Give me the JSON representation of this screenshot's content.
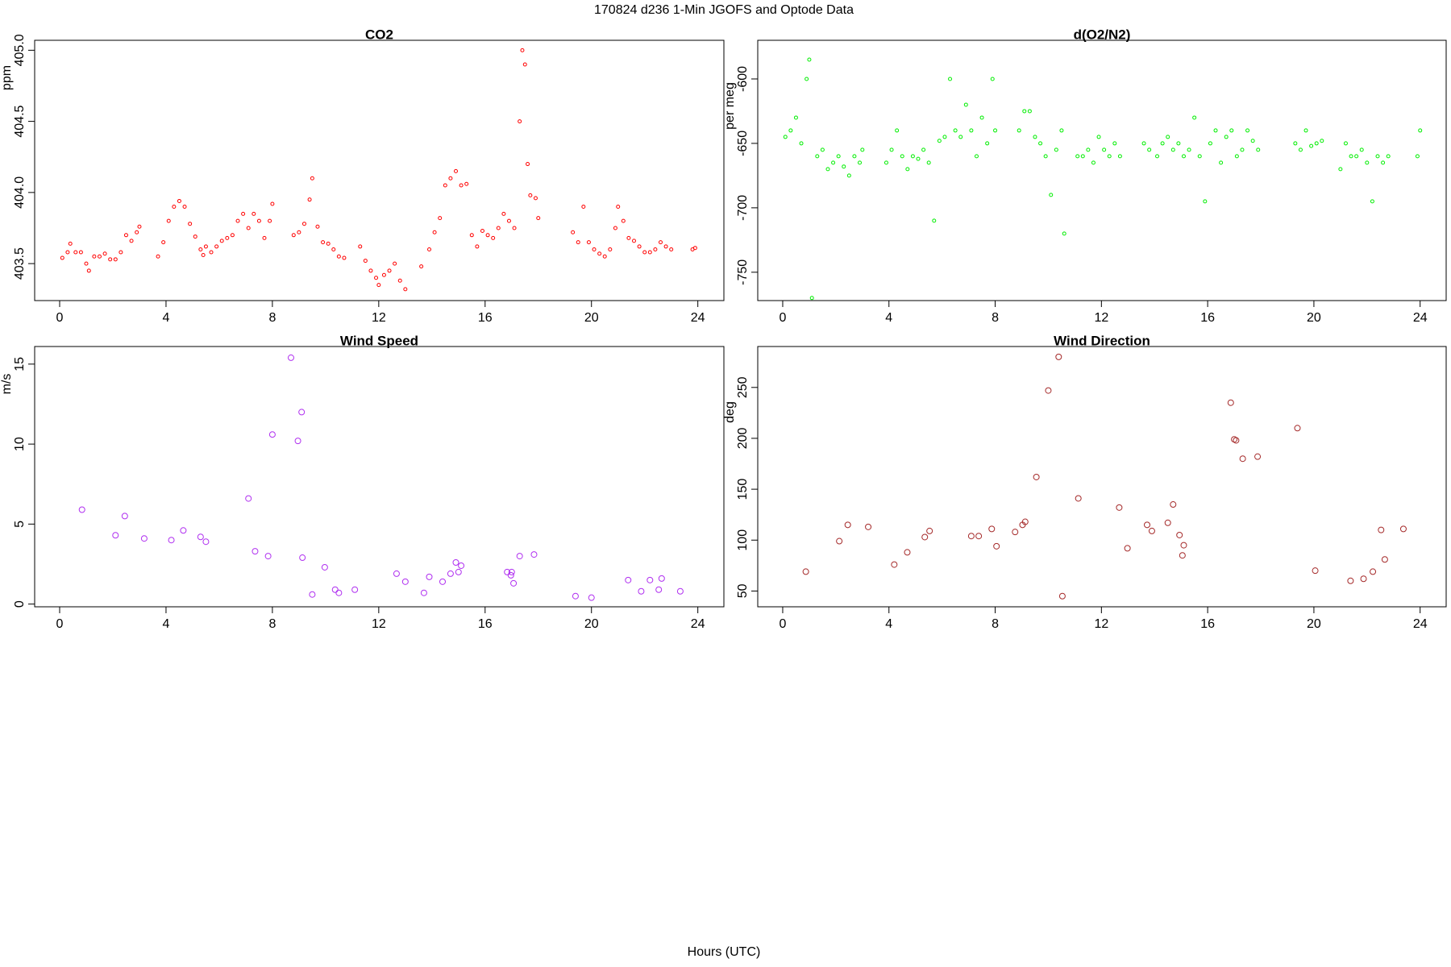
{
  "title": "170824   d236   1-Min  JGOFS and Optode Data",
  "xlabel": "Hours (UTC)",
  "chart_data": [
    {
      "type": "scatter",
      "title": "CO2",
      "ylabel": "ppm",
      "color": "#ff0000",
      "x": [
        0.1,
        0.3,
        0.4,
        0.6,
        0.8,
        1.0,
        1.1,
        1.3,
        1.5,
        1.7,
        1.9,
        2.1,
        2.3,
        2.5,
        2.7,
        2.9,
        3.0,
        3.7,
        3.9,
        4.1,
        4.3,
        4.5,
        4.7,
        4.9,
        5.1,
        5.3,
        5.4,
        5.5,
        5.7,
        5.9,
        6.1,
        6.3,
        6.5,
        6.7,
        6.9,
        7.1,
        7.3,
        7.5,
        7.7,
        7.9,
        8.0,
        8.8,
        9.0,
        9.2,
        9.4,
        9.5,
        9.7,
        9.9,
        10.1,
        10.3,
        10.5,
        10.7,
        11.3,
        11.5,
        11.7,
        11.9,
        12.0,
        12.2,
        12.4,
        12.6,
        12.8,
        13.0,
        13.6,
        13.9,
        14.1,
        14.3,
        14.5,
        14.7,
        14.9,
        15.1,
        15.3,
        15.5,
        15.7,
        15.9,
        16.1,
        16.3,
        16.5,
        16.7,
        16.9,
        17.1,
        17.3,
        17.4,
        17.5,
        17.6,
        17.7,
        17.9,
        18.0,
        19.3,
        19.5,
        19.7,
        19.9,
        20.1,
        20.3,
        20.5,
        20.7,
        20.9,
        21.0,
        21.2,
        21.4,
        21.6,
        21.8,
        22.0,
        22.2,
        22.4,
        22.6,
        22.8,
        23.0,
        23.8,
        23.9
      ],
      "values": [
        403.54,
        403.58,
        403.64,
        403.58,
        403.58,
        403.5,
        403.45,
        403.55,
        403.55,
        403.57,
        403.53,
        403.53,
        403.58,
        403.7,
        403.66,
        403.72,
        403.76,
        403.55,
        403.65,
        403.8,
        403.9,
        403.94,
        403.9,
        403.78,
        403.69,
        403.6,
        403.56,
        403.62,
        403.58,
        403.62,
        403.66,
        403.68,
        403.7,
        403.8,
        403.85,
        403.75,
        403.85,
        403.8,
        403.68,
        403.8,
        403.92,
        403.7,
        403.72,
        403.78,
        403.95,
        404.1,
        403.76,
        403.65,
        403.64,
        403.6,
        403.55,
        403.54,
        403.62,
        403.52,
        403.45,
        403.4,
        403.35,
        403.42,
        403.45,
        403.5,
        403.38,
        403.32,
        403.48,
        403.6,
        403.72,
        403.82,
        404.05,
        404.1,
        404.15,
        404.05,
        404.06,
        403.7,
        403.62,
        403.73,
        403.7,
        403.68,
        403.75,
        403.85,
        403.8,
        403.75,
        404.5,
        405.0,
        404.9,
        404.2,
        403.98,
        403.96,
        403.82,
        403.72,
        403.65,
        403.9,
        403.65,
        403.6,
        403.57,
        403.55,
        403.6,
        403.75,
        403.9,
        403.8,
        403.68,
        403.66,
        403.62,
        403.58,
        403.58,
        403.6,
        403.65,
        403.62,
        403.6,
        403.6,
        403.61
      ],
      "xlim": [
        -0.94,
        24.98
      ],
      "xticks": [
        0,
        4,
        8,
        12,
        16,
        20,
        24
      ],
      "ylim": [
        403.24,
        405.07
      ],
      "yticks": [
        {
          "value": 403.5,
          "label": "403.5"
        },
        {
          "value": 404,
          "label": "404.0"
        },
        {
          "value": 404.5,
          "label": "404.5"
        },
        {
          "value": 405,
          "label": "405.0"
        }
      ]
    },
    {
      "type": "scatter",
      "title": "d(O2/N2)",
      "ylabel": "per meg",
      "color": "#00ee00",
      "x": [
        0.1,
        0.3,
        0.5,
        0.7,
        0.9,
        1.0,
        1.1,
        1.3,
        1.5,
        1.7,
        1.9,
        2.1,
        2.3,
        2.5,
        2.7,
        2.9,
        3.0,
        3.9,
        4.1,
        4.3,
        4.5,
        4.7,
        4.9,
        5.1,
        5.3,
        5.5,
        5.7,
        5.9,
        6.1,
        6.3,
        6.5,
        6.7,
        6.9,
        7.1,
        7.3,
        7.5,
        7.7,
        7.9,
        8.0,
        8.9,
        9.1,
        9.3,
        9.5,
        9.7,
        9.9,
        10.1,
        10.3,
        10.5,
        10.6,
        11.1,
        11.3,
        11.5,
        11.7,
        11.9,
        12.1,
        12.3,
        12.5,
        12.7,
        13.6,
        13.8,
        14.1,
        14.3,
        14.5,
        14.7,
        14.9,
        15.1,
        15.3,
        15.5,
        15.7,
        15.9,
        16.1,
        16.3,
        16.5,
        16.7,
        16.9,
        17.1,
        17.3,
        17.5,
        17.7,
        17.9,
        19.3,
        19.5,
        19.7,
        19.9,
        20.1,
        20.3,
        21.0,
        21.2,
        21.4,
        21.6,
        21.8,
        22.0,
        22.2,
        22.4,
        22.6,
        22.8,
        23.9,
        24.0
      ],
      "values": [
        -645,
        -640,
        -630,
        -650,
        -600,
        -585,
        -770,
        -660,
        -655,
        -670,
        -665,
        -660,
        -668,
        -675,
        -660,
        -665,
        -655,
        -665,
        -655,
        -640,
        -660,
        -670,
        -660,
        -662,
        -655,
        -665,
        -710,
        -648,
        -645,
        -600,
        -640,
        -645,
        -620,
        -640,
        -660,
        -630,
        -650,
        -600,
        -640,
        -640,
        -625,
        -625,
        -645,
        -650,
        -660,
        -690,
        -655,
        -640,
        -720,
        -660,
        -660,
        -655,
        -665,
        -645,
        -655,
        -660,
        -650,
        -660,
        -650,
        -655,
        -660,
        -650,
        -645,
        -655,
        -650,
        -660,
        -655,
        -630,
        -660,
        -695,
        -650,
        -640,
        -665,
        -645,
        -640,
        -660,
        -655,
        -640,
        -648,
        -655,
        -650,
        -655,
        -640,
        -652,
        -650,
        -648,
        -670,
        -650,
        -660,
        -660,
        -655,
        -665,
        -695,
        -660,
        -665,
        -660,
        -660,
        -640
      ],
      "xlim": [
        -0.94,
        24.98
      ],
      "xticks": [
        0,
        4,
        8,
        12,
        16,
        20,
        24
      ],
      "ylim": [
        -772,
        -570
      ],
      "yticks": [
        -600,
        -650,
        -700,
        -750
      ]
    },
    {
      "type": "scatter",
      "title": "Wind Speed",
      "ylabel": "m/s",
      "color": "#b030f0",
      "x": [
        0.84,
        2.1,
        2.45,
        3.18,
        4.2,
        4.65,
        5.3,
        5.5,
        7.1,
        7.35,
        7.84,
        8.0,
        8.7,
        8.96,
        9.1,
        9.13,
        9.5,
        9.97,
        10.36,
        10.5,
        11.1,
        12.67,
        13.0,
        13.7,
        13.9,
        14.4,
        14.7,
        14.9,
        15.0,
        15.1,
        16.83,
        16.97,
        17.0,
        17.07,
        17.3,
        17.84,
        19.4,
        20.0,
        21.38,
        21.87,
        22.2,
        22.53,
        22.64,
        23.34
      ],
      "values": [
        5.9,
        4.3,
        5.5,
        4.1,
        4.0,
        4.6,
        4.2,
        3.9,
        6.6,
        3.3,
        3.0,
        10.6,
        15.4,
        10.2,
        12.0,
        2.9,
        0.6,
        2.3,
        0.9,
        0.7,
        0.9,
        1.9,
        1.4,
        0.7,
        1.7,
        1.4,
        1.9,
        2.6,
        2.0,
        2.4,
        2.0,
        1.8,
        2.0,
        1.3,
        3.0,
        3.1,
        0.5,
        0.4,
        1.5,
        0.8,
        1.5,
        0.9,
        1.6,
        0.8
      ],
      "xlim": [
        -0.94,
        24.98
      ],
      "xticks": [
        0,
        4,
        8,
        12,
        16,
        20,
        24
      ],
      "ylim": [
        -0.17,
        16.1
      ],
      "yticks": [
        0,
        5,
        10,
        15
      ]
    },
    {
      "type": "scatter",
      "title": "Wind Direction",
      "ylabel": "deg",
      "color": "#a52a2a",
      "x": [
        0.87,
        2.13,
        2.45,
        3.22,
        4.2,
        4.69,
        5.35,
        5.53,
        7.1,
        7.38,
        7.87,
        8.05,
        8.75,
        9.03,
        9.13,
        9.55,
        10.0,
        10.39,
        10.53,
        11.13,
        12.67,
        12.98,
        13.72,
        13.9,
        14.5,
        14.7,
        14.94,
        15.05,
        15.1,
        16.87,
        17.0,
        17.07,
        17.32,
        17.88,
        19.38,
        20.05,
        21.38,
        21.87,
        22.22,
        22.53,
        22.67,
        23.37
      ],
      "values": [
        69,
        99,
        115,
        113,
        76,
        88,
        103,
        109,
        104,
        104,
        111,
        94,
        108,
        115,
        118,
        162,
        247,
        280,
        45,
        141,
        132,
        92,
        115,
        109,
        117,
        135,
        105,
        85,
        95,
        235,
        199,
        198,
        180,
        182,
        210,
        70,
        60,
        62,
        69,
        110,
        81,
        111
      ],
      "xlim": [
        -0.94,
        24.98
      ],
      "xticks": [
        0,
        4,
        8,
        12,
        16,
        20,
        24
      ],
      "ylim": [
        34.5,
        290.2
      ],
      "yticks": [
        50,
        100,
        150,
        200,
        250
      ]
    }
  ]
}
